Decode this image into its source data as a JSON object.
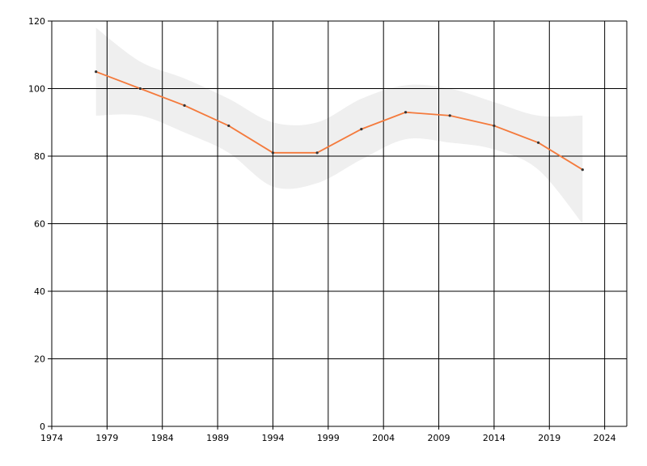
{
  "chart_data": {
    "type": "line",
    "x": [
      1978,
      1982,
      1986,
      1990,
      1994,
      1998,
      2002,
      2006,
      2010,
      2014,
      2018,
      2022
    ],
    "series": [
      {
        "values": [
          105,
          100,
          95,
          89,
          81,
          81,
          88,
          93,
          92,
          89,
          84,
          76
        ]
      }
    ],
    "band": {
      "upper": [
        118,
        108,
        103,
        97,
        90,
        90,
        97,
        101,
        100,
        96,
        92,
        92
      ],
      "lower": [
        92,
        92,
        87,
        81,
        71,
        72,
        79,
        85,
        84,
        82,
        76,
        60
      ]
    },
    "xlim": [
      1974,
      2026
    ],
    "ylim": [
      0,
      120
    ],
    "xticks": [
      "1974",
      "1979",
      "1984",
      "1989",
      "1994",
      "1999",
      "2004",
      "2009",
      "2014",
      "2019",
      "2024"
    ],
    "yticks": [
      "0",
      "20",
      "40",
      "60",
      "80",
      "100",
      "120"
    ],
    "grid": true,
    "colors": {
      "line": "#f47a3c",
      "band": "#efefef",
      "grid": "#000000",
      "point": "#333333"
    }
  }
}
